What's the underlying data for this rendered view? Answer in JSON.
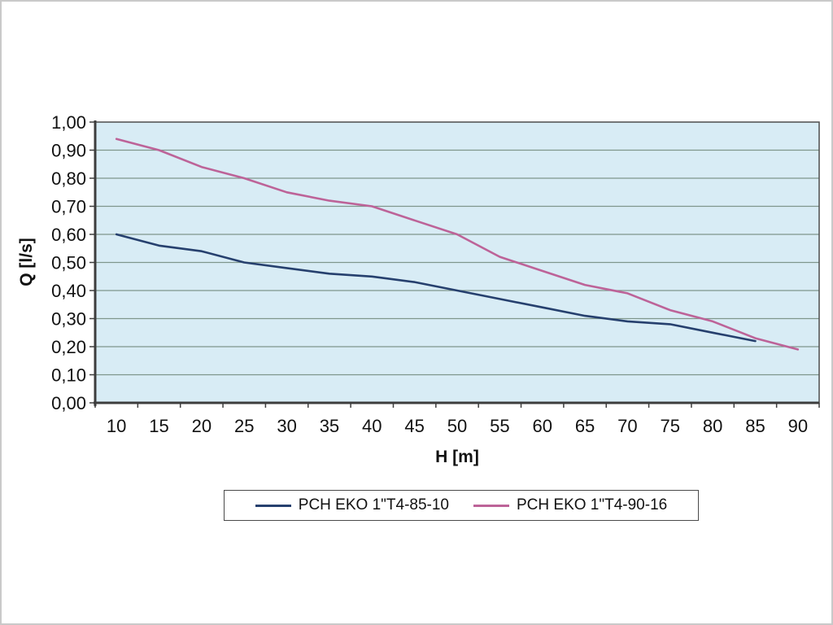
{
  "chart_data": {
    "type": "line",
    "title": "",
    "xlabel": "H [m]",
    "ylabel": "Q [l/s]",
    "x_axis": {
      "ticks": [
        10,
        15,
        20,
        25,
        30,
        35,
        40,
        45,
        50,
        55,
        60,
        65,
        70,
        75,
        80,
        85,
        90
      ],
      "label": "H [m]"
    },
    "y_axis": {
      "min": 0,
      "max": 1,
      "step": 0.1,
      "labels": [
        "0,00",
        "0,10",
        "0,20",
        "0,30",
        "0,40",
        "0,50",
        "0,60",
        "0,70",
        "0,80",
        "0,90",
        "1,00"
      ]
    },
    "grid": true,
    "legend_position": "bottom",
    "plot_bg": "#d8ecf5",
    "grid_color": "#7f968c",
    "axis_color": "#3d3d3d",
    "border_color": "#4d4d4d",
    "series": [
      {
        "name": "PCH EKO 1\"T4-85-10",
        "color": "#26406e",
        "x": [
          10,
          15,
          20,
          25,
          30,
          35,
          40,
          45,
          50,
          55,
          60,
          65,
          70,
          75,
          80,
          85
        ],
        "values": [
          0.6,
          0.56,
          0.54,
          0.5,
          0.48,
          0.46,
          0.45,
          0.43,
          0.4,
          0.37,
          0.34,
          0.31,
          0.29,
          0.28,
          0.25,
          0.22
        ]
      },
      {
        "name": "PCH EKO 1\"T4-90-16",
        "color": "#bd6398",
        "x": [
          10,
          15,
          20,
          25,
          30,
          35,
          40,
          45,
          50,
          55,
          60,
          65,
          70,
          75,
          80,
          85,
          90
        ],
        "values": [
          0.94,
          0.9,
          0.84,
          0.8,
          0.75,
          0.72,
          0.7,
          0.65,
          0.6,
          0.52,
          0.47,
          0.42,
          0.39,
          0.33,
          0.29,
          0.23,
          0.19
        ]
      }
    ]
  }
}
